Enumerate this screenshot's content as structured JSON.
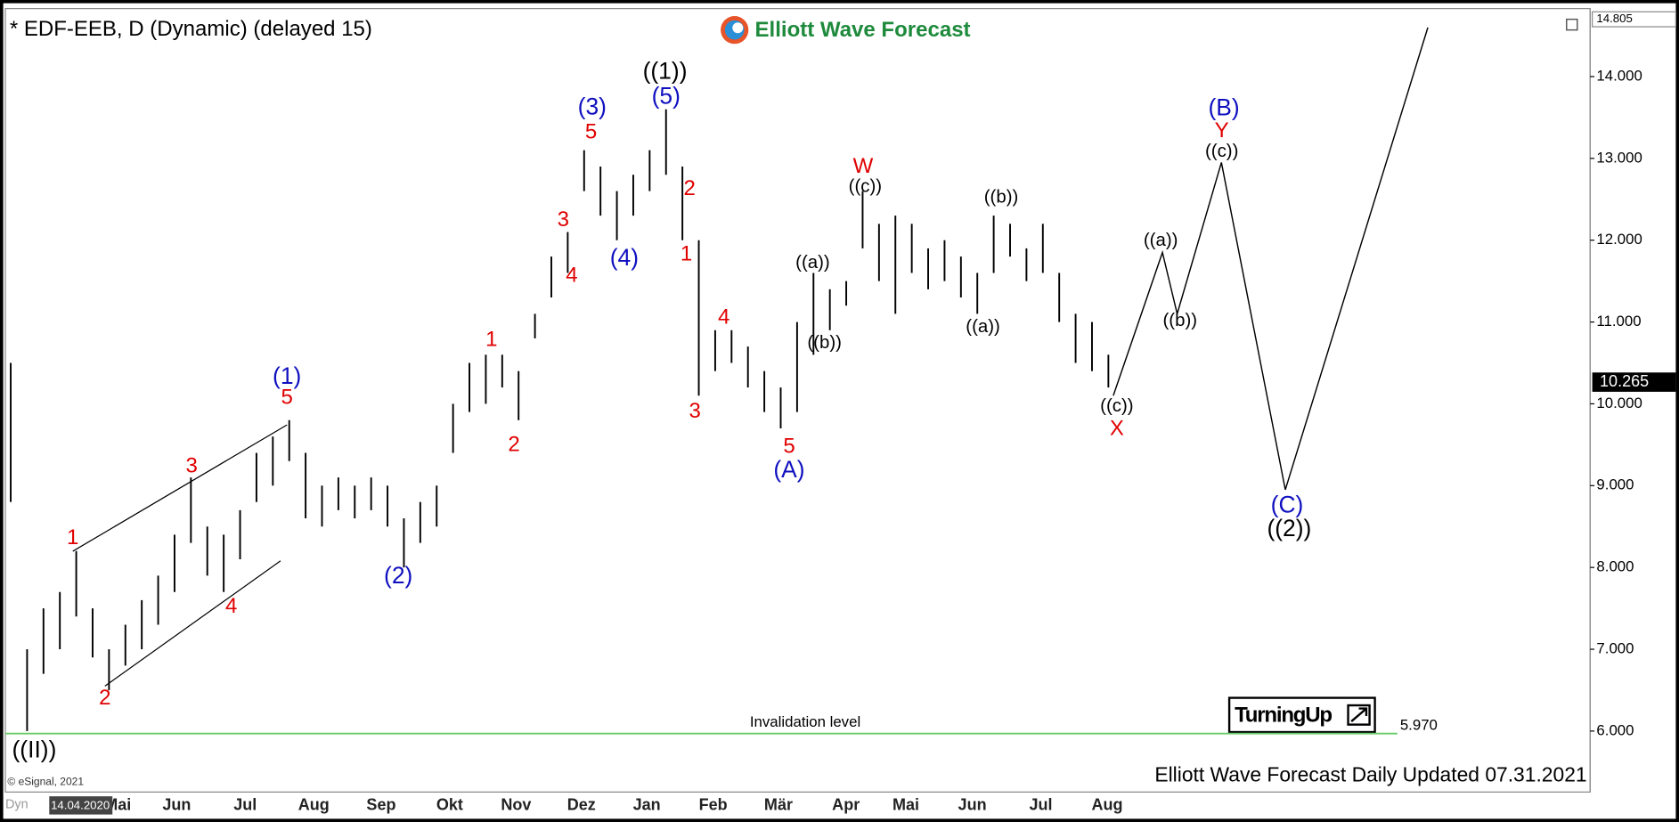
{
  "chart_data": {
    "type": "ohlc",
    "title": "* EDF-EEB, D (Dynamic) (delayed 15)",
    "brand": "Elliott Wave Forecast",
    "footer": "Elliott Wave Forecast Daily Updated 07.31.2021",
    "copyright": "© eSignal, 2021",
    "start_date": "14.04.2020",
    "mode_label": "Dyn",
    "badge": "TurningUp",
    "color": "#000000",
    "low": [
      8.8,
      6.0,
      6.7,
      7.0,
      7.4,
      6.9,
      6.5,
      6.8,
      7.0,
      7.3,
      7.7,
      8.3,
      7.9,
      7.7,
      8.1,
      8.8,
      9.0,
      9.3,
      8.6,
      8.5,
      8.7,
      8.6,
      8.7,
      8.5,
      8.0,
      8.3,
      8.5,
      9.4,
      9.9,
      10.0,
      10.2,
      9.8,
      10.8,
      11.3,
      11.6,
      12.6,
      12.3,
      12.0,
      12.3,
      12.6,
      12.8,
      12.0,
      10.1,
      10.4,
      10.5,
      10.2,
      9.9,
      9.7,
      9.9,
      10.6,
      10.9,
      11.2,
      11.9,
      11.5,
      11.1,
      11.6,
      11.4,
      11.5,
      11.3,
      11.1,
      11.6,
      11.8,
      11.5,
      11.6,
      11.0,
      10.5,
      10.4,
      10.2
    ],
    "high": [
      10.5,
      7.0,
      7.5,
      7.7,
      8.2,
      7.5,
      7.0,
      7.3,
      7.6,
      7.9,
      8.4,
      9.1,
      8.5,
      8.4,
      8.7,
      9.4,
      9.6,
      9.8,
      9.4,
      9.0,
      9.1,
      9.0,
      9.1,
      9.0,
      8.6,
      8.8,
      9.0,
      10.0,
      10.5,
      10.6,
      10.6,
      10.4,
      11.1,
      11.8,
      12.1,
      13.1,
      12.9,
      12.6,
      12.8,
      13.1,
      13.6,
      12.9,
      12.0,
      10.9,
      10.9,
      10.7,
      10.4,
      10.2,
      11.0,
      11.6,
      11.4,
      11.5,
      12.6,
      12.2,
      12.3,
      12.2,
      11.9,
      12.0,
      11.8,
      11.6,
      12.3,
      12.2,
      11.9,
      12.2,
      11.6,
      11.1,
      11.0,
      10.6
    ],
    "projection": {
      "x": [
        67.3,
        70.3,
        71.2,
        73.9,
        77.8,
        86.5
      ],
      "values": [
        10.1,
        11.85,
        11.1,
        12.95,
        8.95,
        14.6
      ]
    },
    "last_price": 10.265,
    "invalidation": {
      "value": 5.97,
      "label": "5.970",
      "text": "Invalidation level",
      "color": "#66cc66"
    },
    "months": [
      "Mai",
      "Jun",
      "Jul",
      "Aug",
      "Sep",
      "Okt",
      "Nov",
      "Dez",
      "Jan",
      "Feb",
      "Mär",
      "Apr",
      "Mai",
      "Jun",
      "Jul",
      "Aug"
    ],
    "ylim": [
      5.255,
      14.805
    ],
    "yticks": [
      {
        "value": 6,
        "label": "6.000"
      },
      {
        "value": 7,
        "label": "7.000"
      },
      {
        "value": 8,
        "label": "8.000"
      },
      {
        "value": 9,
        "label": "9.000"
      },
      {
        "value": 10,
        "label": "10.000"
      },
      {
        "value": 11,
        "label": "11.000"
      },
      {
        "value": 12,
        "label": "12.000"
      },
      {
        "value": 13,
        "label": "13.000"
      },
      {
        "value": 14,
        "label": "14.000"
      }
    ],
    "wave_labels": [
      {
        "text": "((II))",
        "color": "#000000"
      },
      {
        "text": "1",
        "color": "#e00000"
      },
      {
        "text": "2",
        "color": "#e00000"
      },
      {
        "text": "3",
        "color": "#e00000"
      },
      {
        "text": "4",
        "color": "#e00000"
      },
      {
        "text": "5",
        "color": "#e00000"
      },
      {
        "text": "(1)",
        "color": "#1010c0"
      },
      {
        "text": "(2)",
        "color": "#1010c0"
      },
      {
        "text": "1",
        "color": "#e00000"
      },
      {
        "text": "2",
        "color": "#e00000"
      },
      {
        "text": "3",
        "color": "#e00000"
      },
      {
        "text": "4",
        "color": "#e00000"
      },
      {
        "text": "5",
        "color": "#e00000"
      },
      {
        "text": "(3)",
        "color": "#1010c0"
      },
      {
        "text": "(4)",
        "color": "#1010c0"
      },
      {
        "text": "(5)",
        "color": "#1010c0"
      },
      {
        "text": "((1))",
        "color": "#000000"
      },
      {
        "text": "2",
        "color": "#e00000"
      },
      {
        "text": "1",
        "color": "#e00000"
      },
      {
        "text": "3",
        "color": "#e00000"
      },
      {
        "text": "4",
        "color": "#e00000"
      },
      {
        "text": "5",
        "color": "#e00000"
      },
      {
        "text": "(A)",
        "color": "#1010c0"
      },
      {
        "text": "((a))",
        "color": "#000000"
      },
      {
        "text": "((b))",
        "color": "#000000"
      },
      {
        "text": "((c))",
        "color": "#000000"
      },
      {
        "text": "W",
        "color": "#e00000"
      },
      {
        "text": "((a))",
        "color": "#000000"
      },
      {
        "text": "((b))",
        "color": "#000000"
      },
      {
        "text": "((c))",
        "color": "#000000"
      },
      {
        "text": "X",
        "color": "#e00000"
      },
      {
        "text": "((a))",
        "color": "#000000"
      },
      {
        "text": "((b))",
        "color": "#000000"
      },
      {
        "text": "((c))",
        "color": "#000000"
      },
      {
        "text": "Y",
        "color": "#e00000"
      },
      {
        "text": "(B)",
        "color": "#1010c0"
      },
      {
        "text": "(C)",
        "color": "#1010c0"
      },
      {
        "text": "((2))",
        "color": "#000000"
      }
    ]
  }
}
